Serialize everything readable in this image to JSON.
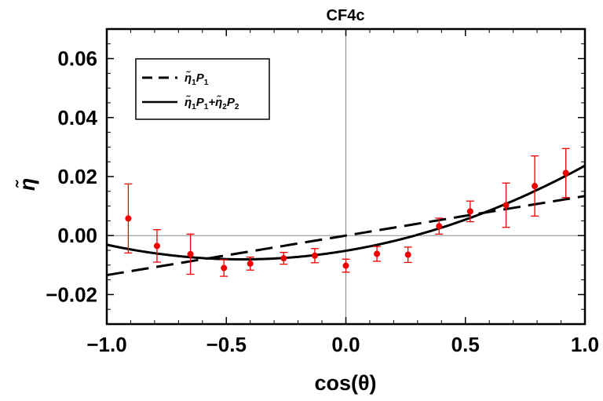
{
  "chart_data": {
    "type": "scatter",
    "title": "CF4c",
    "xlabel": "cos(θ)",
    "ylabel": "η̃",
    "xlim": [
      -1.0,
      1.0
    ],
    "ylim": [
      -0.03,
      0.07
    ],
    "x_ticks": [
      -1.0,
      -0.5,
      0.0,
      0.5,
      1.0
    ],
    "x_tick_labels": [
      "−1.0",
      "−0.5",
      "0.0",
      "0.5",
      "1.0"
    ],
    "y_ticks": [
      -0.02,
      0.0,
      0.02,
      0.04,
      0.06
    ],
    "y_tick_labels": [
      "−0.02",
      "0.00",
      "0.02",
      "0.04",
      "0.06"
    ],
    "grid": false,
    "colors": {
      "points": "#ee0000",
      "curves": "#000000"
    },
    "series": [
      {
        "name": "data",
        "kind": "points_with_error_bars",
        "x": [
          -0.91,
          -0.79,
          -0.65,
          -0.51,
          -0.4,
          -0.26,
          -0.13,
          0.0,
          0.13,
          0.26,
          0.39,
          0.52,
          0.67,
          0.79,
          0.92
        ],
        "y": [
          0.0058,
          -0.0035,
          -0.0063,
          -0.011,
          -0.0095,
          -0.0077,
          -0.0068,
          -0.0102,
          -0.0062,
          -0.0065,
          0.0032,
          0.0082,
          0.0103,
          0.0168,
          0.0212
        ],
        "yerr": [
          0.0117,
          0.0055,
          0.0068,
          0.0028,
          0.0022,
          0.002,
          0.0024,
          0.0022,
          0.0025,
          0.0026,
          0.0027,
          0.0035,
          0.0075,
          0.0102,
          0.0083
        ]
      },
      {
        "name": "η̃₁P₁",
        "kind": "dashed_line",
        "coefficients": {
          "eta1": 0.0134,
          "eta2": 0.0
        }
      },
      {
        "name": "η̃₁P₁+η̃₂P₂",
        "kind": "solid_line",
        "coefficients": {
          "eta1": 0.0134,
          "eta2": 0.0103
        }
      }
    ],
    "legend": {
      "placement": "top-left",
      "entries": [
        {
          "label": "η̃",
          "sub1": "1",
          "p": "P",
          "sub2": "1"
        },
        {
          "label1": "η̃",
          "sub1": "1",
          "p1": "P",
          "sub2": "1",
          "plus": "+",
          "label2": "η̃",
          "sub3": "2",
          "p2": "P",
          "sub4": "2"
        }
      ]
    }
  }
}
